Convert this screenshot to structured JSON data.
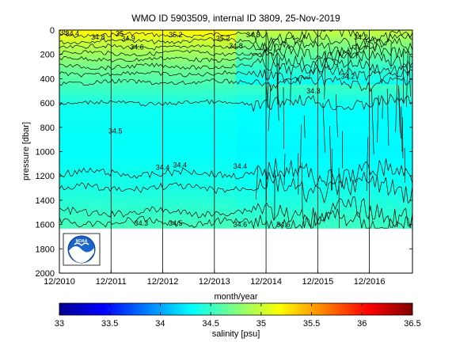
{
  "chart_data": {
    "type": "heatmap",
    "title": "WMO ID 5903509, internal ID 3809, 25-Nov-2019",
    "xlabel": "month/year",
    "ylabel": "pressure [dbar]",
    "x_ticks": [
      "12/2010",
      "12/2011",
      "12/2012",
      "12/2013",
      "12/2014",
      "12/2015",
      "12/2016"
    ],
    "x_range": [
      "2010-12",
      "2017-10"
    ],
    "y_ticks": [
      0,
      200,
      400,
      600,
      800,
      1000,
      1200,
      1400,
      1600,
      1800,
      2000
    ],
    "ylim": [
      2000,
      0
    ],
    "y_reversed": true,
    "data_max_pressure": 1630,
    "colorbar": {
      "label": "salinity [psu]",
      "ticks": [
        33,
        33.5,
        34,
        34.5,
        35,
        35.5,
        36,
        36.5
      ],
      "range": [
        33,
        36.5
      ],
      "colormap": "jet"
    },
    "contour_labels": [
      {
        "text": "35",
        "date": "2011-01",
        "pressure": 20
      },
      {
        "text": "34.4",
        "date": "2011-03",
        "pressure": 30
      },
      {
        "text": "34.8",
        "date": "2011-09",
        "pressure": 60
      },
      {
        "text": "35",
        "date": "2012-02",
        "pressure": 30
      },
      {
        "text": "34.9",
        "date": "2012-04",
        "pressure": 70
      },
      {
        "text": "34.6",
        "date": "2012-06",
        "pressure": 140
      },
      {
        "text": "35.2",
        "date": "2013-03",
        "pressure": 40
      },
      {
        "text": "35.2",
        "date": "2014-02",
        "pressure": 70
      },
      {
        "text": "34.8",
        "date": "2014-05",
        "pressure": 130
      },
      {
        "text": "34.3",
        "date": "2014-09",
        "pressure": 40
      },
      {
        "text": "34.3",
        "date": "2015-11",
        "pressure": 500
      },
      {
        "text": "34.2",
        "date": "2016-07",
        "pressure": 380
      },
      {
        "text": "34.2",
        "date": "2016-10",
        "pressure": 60
      },
      {
        "text": "34.5",
        "date": "2012-01",
        "pressure": 830
      },
      {
        "text": "34.4",
        "date": "2012-12",
        "pressure": 1130
      },
      {
        "text": "34.4",
        "date": "2013-04",
        "pressure": 1110
      },
      {
        "text": "34.4",
        "date": "2014-06",
        "pressure": 1120
      },
      {
        "text": "34.3",
        "date": "2012-07",
        "pressure": 1590
      },
      {
        "text": "34.5",
        "date": "2013-03",
        "pressure": 1590
      },
      {
        "text": "34.6",
        "date": "2014-06",
        "pressure": 1600
      },
      {
        "text": "34.6",
        "date": "2015-04",
        "pressure": 1600
      }
    ],
    "logo_text": "NOAA"
  }
}
